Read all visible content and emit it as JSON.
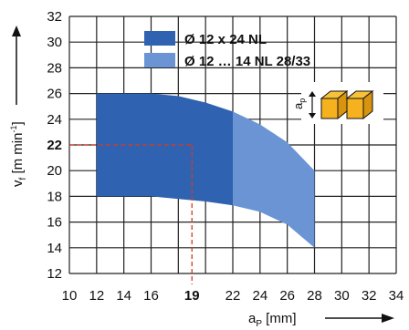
{
  "chart_data": {
    "type": "area",
    "xlabel_main": "a",
    "xlabel_sub": "P",
    "xlabel_unit": " [mm]",
    "ylabel_main": "v",
    "ylabel_sub": "f",
    "ylabel_unit": " [m min",
    "ylabel_sup": "-1",
    "ylabel_close": "]",
    "xlim": [
      10,
      34
    ],
    "ylim": [
      12,
      32
    ],
    "x_ticks": [
      10,
      12,
      14,
      16,
      19,
      22,
      24,
      26,
      28,
      30,
      32,
      34
    ],
    "y_ticks": [
      12,
      14,
      16,
      18,
      20,
      22,
      24,
      26,
      28,
      30,
      32
    ],
    "grid": true,
    "legend_position": "top-center",
    "series": [
      {
        "name": "Ø 12 x 24 NL",
        "color": "#2f62b0",
        "x_range": [
          12,
          22
        ],
        "upper": [
          [
            12,
            26
          ],
          [
            16,
            26
          ],
          [
            18,
            25.8
          ],
          [
            20,
            25.3
          ],
          [
            22,
            24.6
          ]
        ],
        "lower": [
          [
            12,
            18
          ],
          [
            16,
            18
          ],
          [
            18,
            17.8
          ],
          [
            20,
            17.6
          ],
          [
            22,
            17.3
          ]
        ]
      },
      {
        "name": "Ø 12 … 14 NL 28/33",
        "color": "#6a94d4",
        "x_range": [
          22,
          28
        ],
        "upper": [
          [
            22,
            24.6
          ],
          [
            24,
            23.6
          ],
          [
            26,
            22.2
          ],
          [
            28,
            20
          ]
        ],
        "lower": [
          [
            22,
            17.3
          ],
          [
            24,
            16.8
          ],
          [
            26,
            15.8
          ],
          [
            28,
            14
          ]
        ]
      }
    ],
    "annotations": [
      {
        "type": "reference-point",
        "x": 19,
        "y": 22,
        "color": "#d63b1f"
      }
    ],
    "inset_label_main": "a",
    "inset_label_sub": "p"
  }
}
